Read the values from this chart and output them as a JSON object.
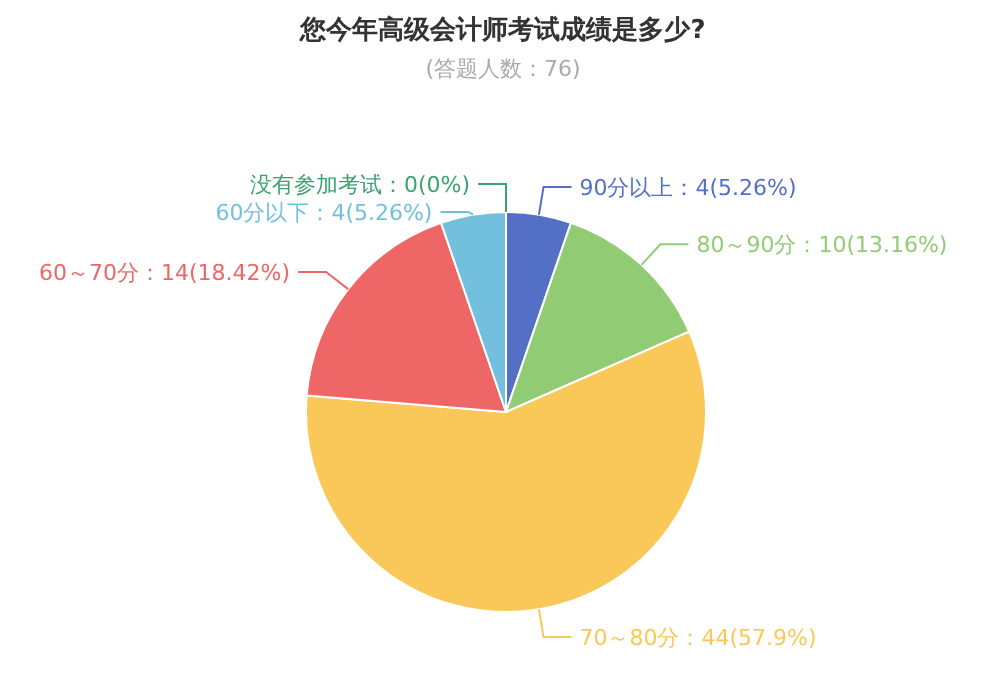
{
  "chart_data": {
    "type": "pie",
    "title": "您今年高级会计师考试成绩是多少?",
    "subtitle": "(答题人数：76)",
    "categories": [
      "90分以上",
      "80～90分",
      "70～80分",
      "60～70分",
      "60分以下",
      "没有参加考试"
    ],
    "values": [
      4,
      10,
      44,
      14,
      4,
      0
    ],
    "value_labels": [
      "4(5.26%)",
      "10(13.16%)",
      "44(57.9%)",
      "14(18.42%)",
      "4(5.26%)",
      "0(0%)"
    ],
    "colors": [
      "#5470c6",
      "#91cc75",
      "#fac858",
      "#ee6666",
      "#73c0de",
      "#3ba272"
    ]
  }
}
